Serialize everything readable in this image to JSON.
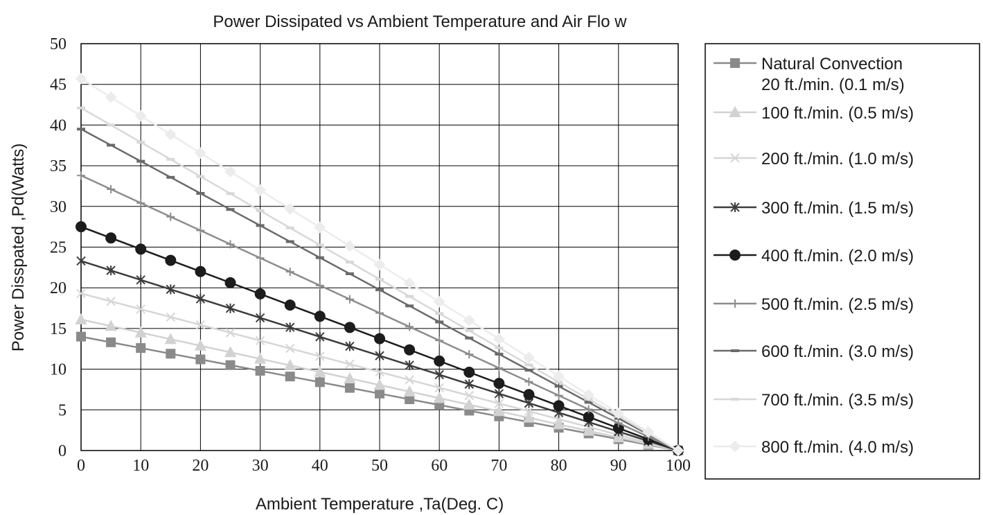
{
  "chart_data": {
    "type": "line",
    "title": "Power Dissipated vs Ambient Temperature and Air Flo w",
    "xlabel": "Ambient Temperature ,Ta(Deg. C)",
    "ylabel": "Power Disspated ,Pd(Watts)",
    "xlim": [
      0,
      100
    ],
    "ylim": [
      0,
      50
    ],
    "grid": true,
    "legend_position": "right",
    "x": [
      0,
      5,
      10,
      15,
      20,
      25,
      30,
      35,
      40,
      45,
      50,
      55,
      60,
      65,
      70,
      75,
      80,
      85,
      90,
      95,
      100
    ],
    "x_ticks": [
      "0",
      "10",
      "20",
      "30",
      "40",
      "50",
      "60",
      "70",
      "80",
      "90",
      "100"
    ],
    "y_ticks": [
      "0",
      "5",
      "10",
      "15",
      "20",
      "25",
      "30",
      "35",
      "40",
      "45",
      "50"
    ],
    "series": [
      {
        "name": "Natural Convection\n20 ft./min. (0.1 m/s)",
        "color": "#8a8a8a",
        "marker": "square",
        "start": 14.0
      },
      {
        "name": "100 ft./min. (0.5 m/s)",
        "color": "#d2d2d2",
        "marker": "triangle",
        "start": 16.1
      },
      {
        "name": "200 ft./min. (1.0 m/s)",
        "color": "#d6d6d6",
        "marker": "x",
        "start": 19.3
      },
      {
        "name": "300 ft./min. (1.5 m/s)",
        "color": "#3c3c3c",
        "marker": "asterisk",
        "start": 23.3
      },
      {
        "name": "400 ft./min. (2.0 m/s)",
        "color": "#1c1c1c",
        "marker": "circle",
        "start": 27.5
      },
      {
        "name": "500 ft./min. (2.5 m/s)",
        "color": "#8c8c8c",
        "marker": "plus",
        "start": 33.8
      },
      {
        "name": "600 ft./min. (3.0 m/s)",
        "color": "#6a6a6a",
        "marker": "dash",
        "start": 39.5
      },
      {
        "name": "700 ft./min. (3.5 m/s)",
        "color": "#d8d8d8",
        "marker": "dash",
        "start": 42.1
      },
      {
        "name": "800 ft./min. (4.0 m/s)",
        "color": "#ececec",
        "marker": "diamond",
        "start": 45.7
      }
    ]
  }
}
